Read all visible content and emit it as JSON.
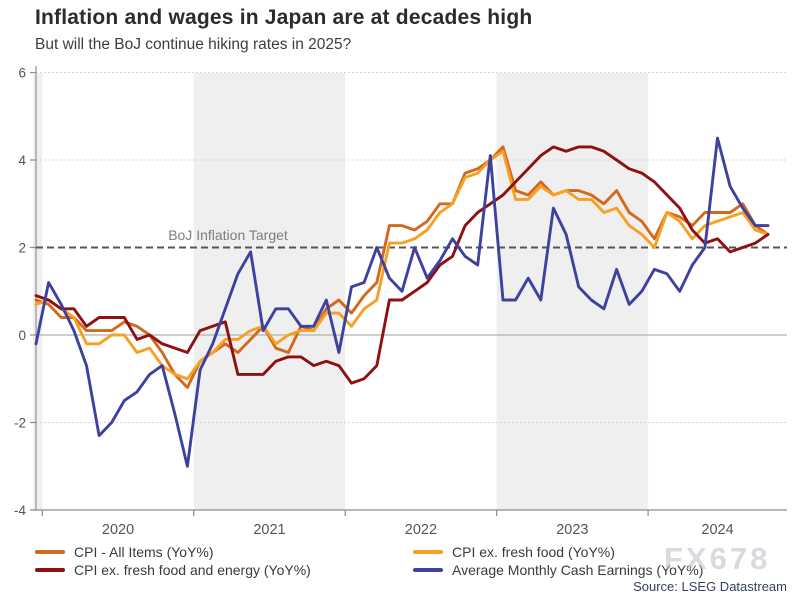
{
  "header": {
    "title": "Inflation and wages in Japan are at decades high",
    "subtitle": "But will the BoJ continue hiking rates in 2025?"
  },
  "annotations": {
    "target_label": "BoJ Inflation Target",
    "watermark": "FX678",
    "source": "Source: LSEG Datastream"
  },
  "legend": {
    "items": [
      {
        "label": "CPI - All Items (YoY%)",
        "color": "#d2691e"
      },
      {
        "label": "CPI ex. fresh food and energy (YoY%)",
        "color": "#8e1111"
      },
      {
        "label": "CPI ex. fresh food (YoY%)",
        "color": "#f7a024"
      },
      {
        "label": "Average Monthly Cash Earnings (YoY%)",
        "color": "#3e429f"
      }
    ]
  },
  "chart_data": {
    "type": "line",
    "frequency": "monthly",
    "x_start": "2019-12",
    "x_end": "2024-10",
    "x_tick_labels": [
      "2020",
      "2021",
      "2022",
      "2023",
      "2024"
    ],
    "ylim": [
      -4,
      6
    ],
    "yticks": [
      6,
      4,
      2,
      0,
      -2,
      -4
    ],
    "grid_dotted_at": [
      6,
      4,
      -2
    ],
    "zero_line": 0,
    "target_line_value": 2,
    "shaded_years": [
      2019,
      2021,
      2023
    ],
    "series": [
      {
        "name": "CPI - All Items (YoY%)",
        "color": "#d2691e",
        "values": [
          0.8,
          0.7,
          0.4,
          0.4,
          0.1,
          0.1,
          0.1,
          0.3,
          0.2,
          0.0,
          -0.4,
          -0.9,
          -1.2,
          -0.6,
          -0.4,
          -0.2,
          -0.4,
          -0.1,
          0.2,
          -0.3,
          -0.4,
          0.2,
          0.1,
          0.6,
          0.8,
          0.5,
          0.9,
          1.2,
          2.5,
          2.5,
          2.4,
          2.6,
          3.0,
          3.0,
          3.7,
          3.8,
          4.0,
          4.3,
          3.3,
          3.2,
          3.5,
          3.2,
          3.3,
          3.3,
          3.2,
          3.0,
          3.3,
          2.8,
          2.6,
          2.2,
          2.8,
          2.7,
          2.5,
          2.8,
          2.8,
          2.8,
          3.0,
          2.5,
          2.3
        ]
      },
      {
        "name": "CPI ex. fresh food (YoY%)",
        "color": "#f7a024",
        "values": [
          0.7,
          0.8,
          0.6,
          0.4,
          -0.2,
          -0.2,
          0.0,
          0.0,
          -0.4,
          -0.3,
          -0.7,
          -0.9,
          -1.0,
          -0.6,
          -0.4,
          -0.1,
          -0.1,
          0.1,
          0.2,
          -0.2,
          0.0,
          0.1,
          0.1,
          0.5,
          0.5,
          0.2,
          0.6,
          0.8,
          2.1,
          2.1,
          2.2,
          2.4,
          2.8,
          3.0,
          3.6,
          3.7,
          4.0,
          4.2,
          3.1,
          3.1,
          3.4,
          3.2,
          3.3,
          3.1,
          3.1,
          2.8,
          2.9,
          2.5,
          2.3,
          2.0,
          2.8,
          2.6,
          2.2,
          2.5,
          2.6,
          2.7,
          2.8,
          2.4,
          2.3
        ]
      },
      {
        "name": "CPI ex. fresh food and energy (YoY%)",
        "color": "#8e1111",
        "values": [
          0.9,
          0.8,
          0.6,
          0.6,
          0.2,
          0.4,
          0.4,
          0.4,
          -0.1,
          0.0,
          -0.2,
          -0.3,
          -0.4,
          0.1,
          0.2,
          0.3,
          -0.9,
          -0.9,
          -0.9,
          -0.6,
          -0.5,
          -0.5,
          -0.7,
          -0.6,
          -0.7,
          -1.1,
          -1.0,
          -0.7,
          0.8,
          0.8,
          1.0,
          1.2,
          1.6,
          1.8,
          2.5,
          2.8,
          3.0,
          3.2,
          3.5,
          3.8,
          4.1,
          4.3,
          4.2,
          4.3,
          4.3,
          4.2,
          4.0,
          3.8,
          3.7,
          3.5,
          3.2,
          2.9,
          2.4,
          2.1,
          2.2,
          1.9,
          2.0,
          2.1,
          2.3
        ]
      },
      {
        "name": "Average Monthly Cash Earnings (YoY%)",
        "color": "#3e429f",
        "values": [
          -0.2,
          1.2,
          0.7,
          0.1,
          -0.7,
          -2.3,
          -2.0,
          -1.5,
          -1.3,
          -0.9,
          -0.7,
          -1.8,
          -3.0,
          -0.8,
          -0.2,
          0.6,
          1.4,
          1.9,
          0.1,
          0.6,
          0.6,
          0.2,
          0.2,
          0.8,
          -0.4,
          1.1,
          1.2,
          2.0,
          1.3,
          1.0,
          2.0,
          1.3,
          1.7,
          2.2,
          1.8,
          1.6,
          4.1,
          0.8,
          0.8,
          1.3,
          0.8,
          2.9,
          2.3,
          1.1,
          0.8,
          0.6,
          1.5,
          0.7,
          1.0,
          1.5,
          1.4,
          1.0,
          1.6,
          2.0,
          4.5,
          3.4,
          2.9,
          2.5,
          2.5
        ]
      }
    ]
  }
}
